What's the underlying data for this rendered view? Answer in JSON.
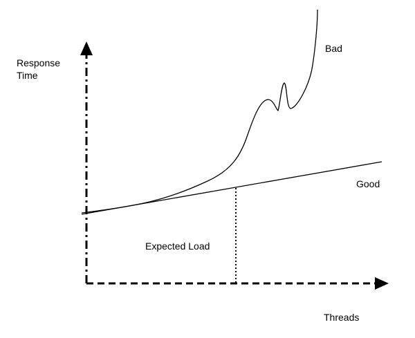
{
  "labels": {
    "y_axis_line1": "Response",
    "y_axis_line2": "Time",
    "x_axis": "Threads",
    "bad": "Bad",
    "good": "Good",
    "expected_load": "Expected Load"
  },
  "colors": {
    "ink": "#000000",
    "background": "#ffffff"
  }
}
